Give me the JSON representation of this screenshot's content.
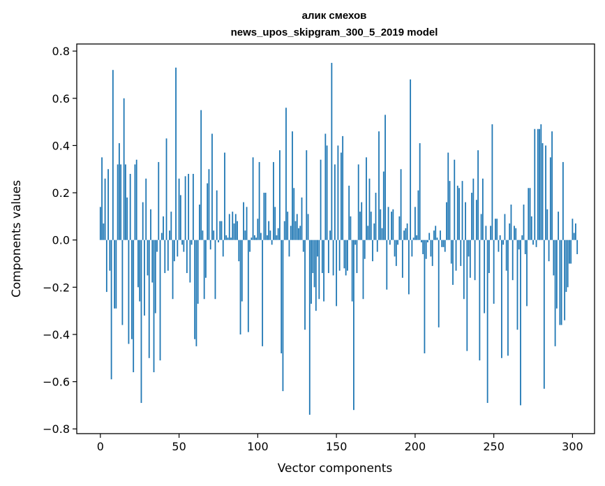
{
  "chart_data": {
    "type": "bar",
    "title_line1": "алик смехов",
    "title_line2": "news_upos_skipgram_300_5_2019 model",
    "xlabel": "Vector components",
    "ylabel": "Components values",
    "xlim": [
      -15,
      314
    ],
    "ylim": [
      -0.82,
      0.83
    ],
    "xticks": [
      0,
      50,
      100,
      150,
      200,
      250,
      300
    ],
    "yticks": [
      -0.8,
      -0.6,
      -0.4,
      -0.2,
      0.0,
      0.2,
      0.4,
      0.6,
      0.8
    ],
    "ytick_labels": [
      "−0.8",
      "−0.6",
      "−0.4",
      "−0.2",
      "0.0",
      "0.2",
      "0.4",
      "0.6",
      "0.8"
    ],
    "xtick_labels": [
      "0",
      "50",
      "100",
      "150",
      "200",
      "250",
      "300"
    ],
    "bar_color": "#1f77b4",
    "values": [
      0.14,
      0.35,
      0.07,
      0.26,
      -0.22,
      0.3,
      -0.13,
      -0.59,
      0.72,
      -0.29,
      -0.29,
      0.32,
      0.41,
      0.32,
      -0.36,
      0.6,
      0.32,
      0.18,
      -0.44,
      0.28,
      -0.42,
      -0.56,
      0.32,
      0.34,
      -0.2,
      -0.26,
      -0.69,
      0.16,
      -0.32,
      0.26,
      -0.15,
      -0.5,
      0.13,
      -0.18,
      -0.56,
      -0.31,
      -0.05,
      0.33,
      -0.51,
      0.03,
      0.1,
      -0.14,
      0.43,
      -0.13,
      0.04,
      0.12,
      -0.25,
      -0.09,
      0.73,
      -0.07,
      0.26,
      0.19,
      -0.02,
      -0.05,
      0.27,
      -0.14,
      0.28,
      -0.18,
      -0.02,
      0.28,
      -0.42,
      -0.45,
      -0.27,
      0.15,
      0.55,
      0.04,
      -0.25,
      -0.16,
      0.24,
      0.3,
      -0.04,
      0.45,
      0.04,
      -0.25,
      0.21,
      -0.01,
      0.08,
      0.08,
      -0.07,
      0.37,
      0.02,
      0.01,
      0.11,
      0.01,
      0.12,
      0.07,
      0.11,
      0.08,
      -0.09,
      -0.4,
      -0.26,
      0.16,
      0.04,
      0.14,
      -0.39,
      -0.05,
      0.01,
      0.35,
      0.02,
      0.01,
      0.09,
      0.33,
      0.03,
      -0.45,
      0.2,
      0.2,
      0.02,
      0.08,
      0.04,
      -0.02,
      0.33,
      0.14,
      0.02,
      0.05,
      0.38,
      -0.48,
      -0.64,
      0.08,
      0.56,
      0.12,
      -0.07,
      0.06,
      0.46,
      0.22,
      0.08,
      0.11,
      0.05,
      0.06,
      0.18,
      -0.05,
      -0.38,
      0.38,
      0.11,
      -0.74,
      -0.27,
      -0.14,
      -0.2,
      -0.3,
      -0.07,
      -0.25,
      0.34,
      -0.14,
      -0.26,
      0.45,
      0.4,
      -0.14,
      0.04,
      0.75,
      -0.15,
      0.32,
      -0.28,
      0.4,
      -0.13,
      0.37,
      0.44,
      -0.12,
      -0.15,
      -0.13,
      0.23,
      0.1,
      -0.26,
      -0.72,
      -0.02,
      -0.14,
      0.32,
      0.12,
      0.16,
      -0.25,
      -0.08,
      0.35,
      0.06,
      0.26,
      0.12,
      -0.09,
      0.07,
      0.2,
      -0.05,
      0.46,
      0.13,
      0.05,
      0.29,
      0.53,
      -0.21,
      0.14,
      -0.02,
      0.12,
      0.13,
      -0.07,
      -0.11,
      -0.02,
      0.1,
      0.3,
      -0.16,
      0.04,
      0.05,
      0.07,
      -0.23,
      0.68,
      -0.07,
      0.01,
      0.14,
      0.02,
      0.21,
      0.41,
      -0.01,
      -0.06,
      -0.48,
      -0.08,
      -0.01,
      0.03,
      -0.07,
      -0.11,
      0.04,
      0.06,
      0.01,
      -0.37,
      0.04,
      -0.03,
      -0.03,
      -0.05,
      0.16,
      0.37,
      0.25,
      -0.1,
      -0.19,
      0.34,
      -0.13,
      0.23,
      0.22,
      -0.11,
      0.25,
      -0.25,
      0.16,
      -0.47,
      -0.07,
      -0.16,
      0.2,
      0.26,
      -0.17,
      0.17,
      0.38,
      -0.51,
      0.11,
      0.26,
      -0.31,
      0.06,
      -0.69,
      -0.14,
      0.06,
      0.49,
      -0.27,
      0.09,
      0.09,
      -0.05,
      0.02,
      -0.5,
      -0.02,
      0.11,
      -0.13,
      -0.49,
      0.07,
      0.15,
      -0.17,
      0.06,
      0.05,
      -0.38,
      -0.04,
      -0.7,
      0.02,
      0.15,
      -0.06,
      -0.28,
      0.22,
      0.22,
      0.1,
      -0.02,
      0.47,
      -0.03,
      0.47,
      0.47,
      0.49,
      0.41,
      -0.63,
      0.4,
      0.13,
      -0.09,
      0.35,
      0.46,
      -0.15,
      -0.45,
      -0.29,
      0.12,
      -0.36,
      -0.36,
      0.33,
      -0.34,
      -0.22,
      -0.2,
      -0.1,
      -0.1,
      0.09,
      0.03,
      0.07,
      -0.06
    ]
  }
}
